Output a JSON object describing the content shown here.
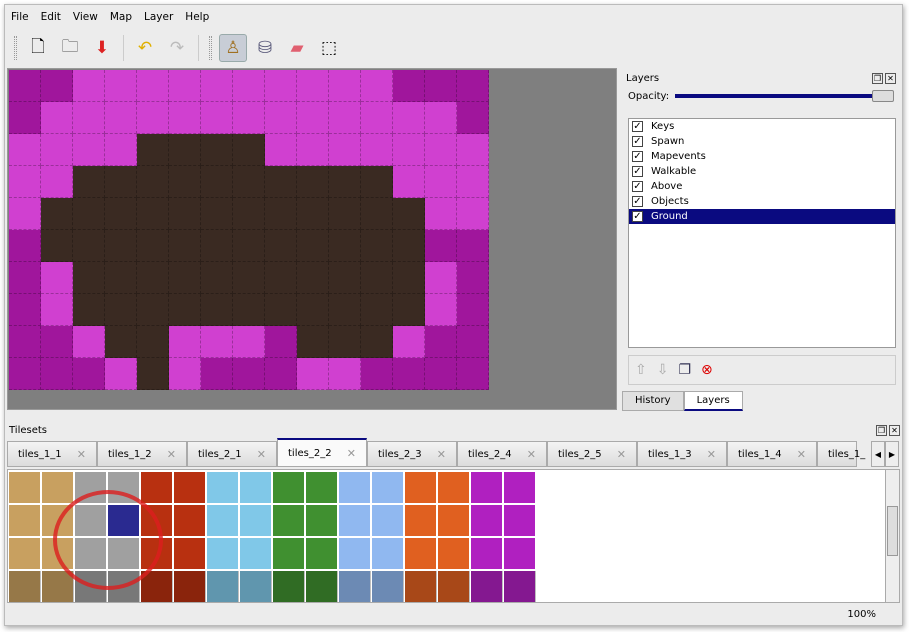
{
  "menu": [
    "File",
    "Edit",
    "View",
    "Map",
    "Layer",
    "Help"
  ],
  "toolbar": [
    {
      "icon": "new-file-icon",
      "glyph": "🗋"
    },
    {
      "icon": "open-folder-icon",
      "glyph": "🗀"
    },
    {
      "icon": "save-icon",
      "glyph": "⬇"
    },
    {
      "icon": "undo-icon",
      "glyph": "↶"
    },
    {
      "icon": "redo-icon",
      "glyph": "↷"
    },
    {
      "icon": "stamp-brush-icon",
      "glyph": "♙",
      "active": true
    },
    {
      "icon": "bucket-fill-icon",
      "glyph": "⛁"
    },
    {
      "icon": "eraser-icon",
      "glyph": "▰"
    },
    {
      "icon": "rect-select-icon",
      "glyph": "⬚"
    }
  ],
  "layers_panel": {
    "title": "Layers",
    "opacity_label": "Opacity:",
    "opacity": 1.0,
    "items": [
      {
        "label": "Keys",
        "visible": true
      },
      {
        "label": "Spawn",
        "visible": true
      },
      {
        "label": "Mapevents",
        "visible": true
      },
      {
        "label": "Walkable",
        "visible": true
      },
      {
        "label": "Above",
        "visible": true
      },
      {
        "label": "Objects",
        "visible": true
      },
      {
        "label": "Ground",
        "visible": true,
        "selected": true
      }
    ],
    "tabs": [
      "History",
      "Layers"
    ],
    "active_tab": "Layers"
  },
  "tilesets_panel": {
    "title": "Tilesets",
    "tabs": [
      "tiles_1_1",
      "tiles_1_2",
      "tiles_2_1",
      "tiles_2_2",
      "tiles_2_3",
      "tiles_2_4",
      "tiles_2_5",
      "tiles_1_3",
      "tiles_1_4",
      "tiles_1_"
    ],
    "active_tab": "tiles_2_2"
  },
  "colors": {
    "accent": "#0a0a80",
    "magenta": "#a0169c",
    "pink": "#d040d0",
    "dirt": "#3a2a22"
  },
  "status": {
    "zoom": "100%"
  }
}
